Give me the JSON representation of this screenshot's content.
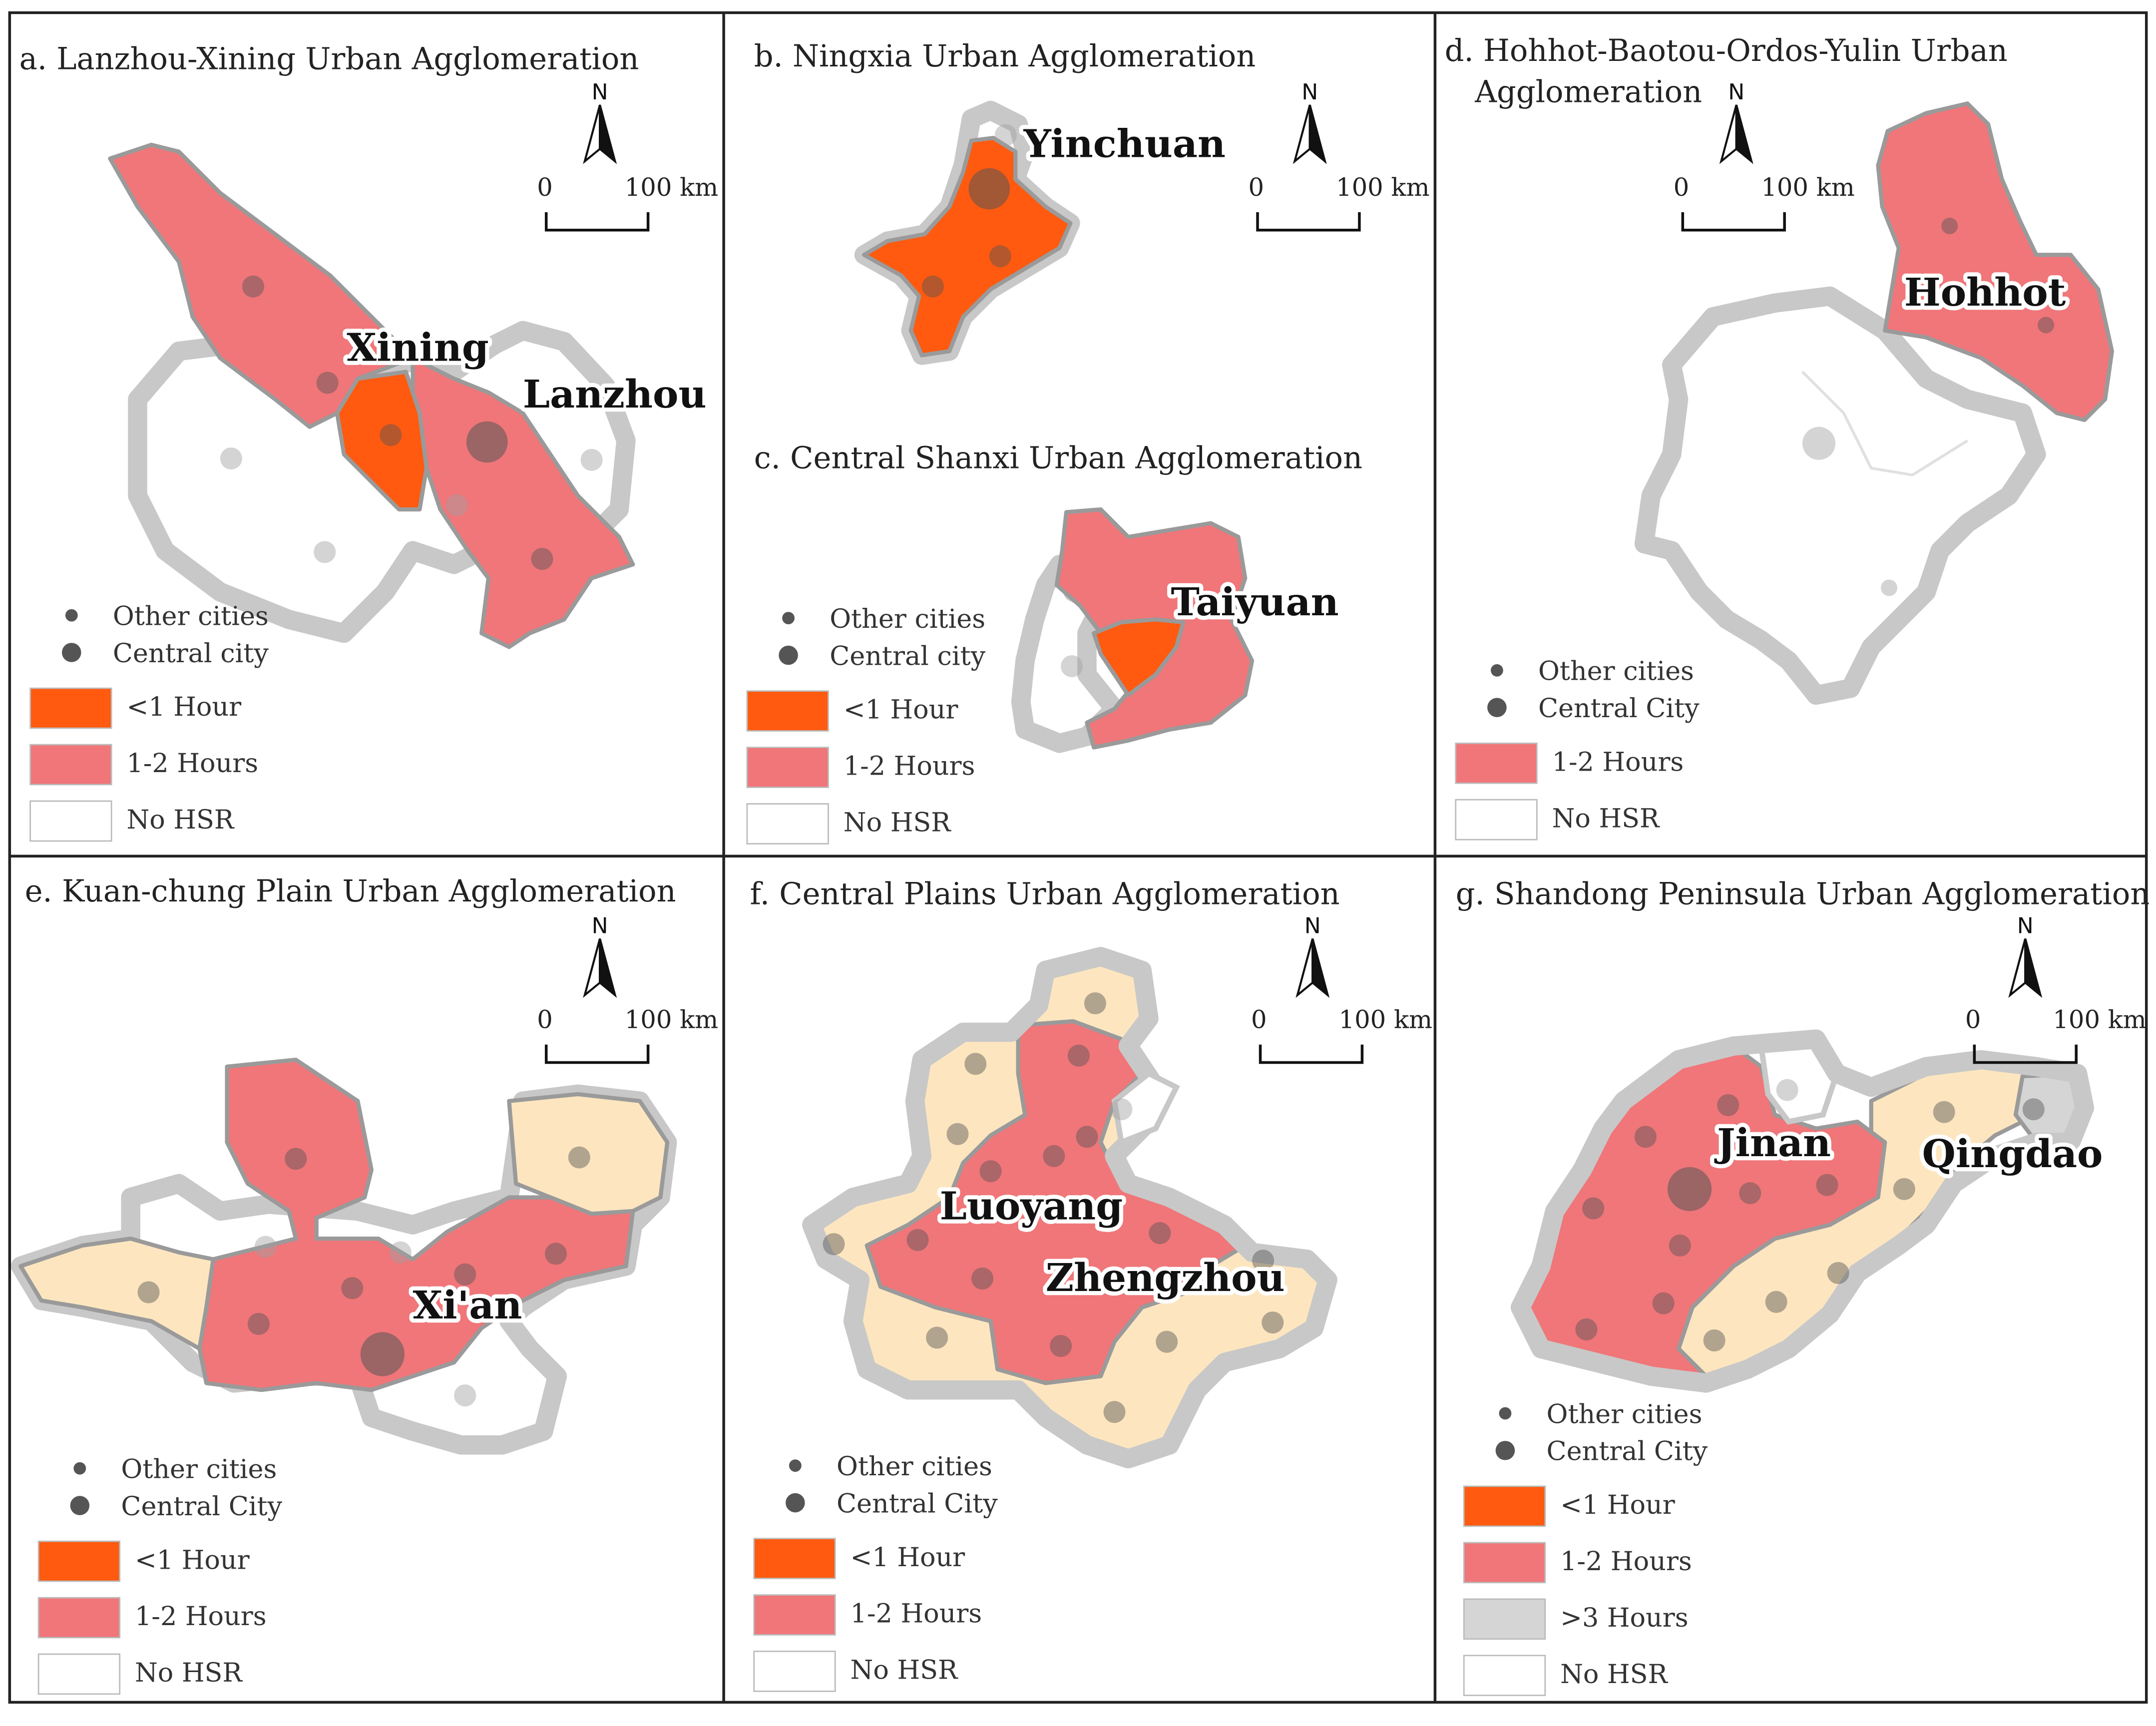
{
  "colors": {
    "lt1": "#ff5a0f",
    "h12": "#f07679",
    "h23": "#fde6bf",
    "gt3": "#d5d5d5",
    "nohsr": "#ffffff",
    "dot": "#555555"
  },
  "panels": [
    {
      "id": "a",
      "title": "a. Lanzhou-Xining Urban Agglomeration",
      "scale": {
        "zero": "0",
        "dist": "100 km"
      },
      "north": "N",
      "labels": [
        "Xining",
        "Lanzhou"
      ],
      "legend": [
        "Other cities",
        "Central city",
        "<1 Hour",
        "1-2 Hours",
        "No HSR"
      ]
    },
    {
      "id": "b",
      "title": "b. Ningxia Urban Agglomeration",
      "scale": {
        "zero": "0",
        "dist": "100 km"
      },
      "north": "N",
      "labels": [
        "Yinchuan"
      ]
    },
    {
      "id": "c",
      "title": "c. Central Shanxi Urban Agglomeration",
      "labels": [
        "Taiyuan"
      ],
      "legend": [
        "Other cities",
        "Central city",
        "<1 Hour",
        "1-2 Hours",
        "No HSR"
      ]
    },
    {
      "id": "d",
      "title_lines": [
        "d. Hohhot-Baotou-Ordos-Yulin Urban",
        "Agglomeration"
      ],
      "scale": {
        "zero": "0",
        "dist": "100 km"
      },
      "north": "N",
      "labels": [
        "Hohhot"
      ],
      "legend": [
        "Other cities",
        "Central City",
        "1-2 Hours",
        "No HSR"
      ]
    },
    {
      "id": "e",
      "title": "e. Kuan-chung Plain Urban Agglomeration",
      "scale": {
        "zero": "0",
        "dist": "100 km"
      },
      "north": "N",
      "labels": [
        "Xi'an"
      ],
      "legend": [
        "Other cities",
        "Central City",
        "<1 Hour",
        "1-2 Hours",
        "No HSR"
      ]
    },
    {
      "id": "f",
      "title": "f. Central Plains Urban Agglomeration",
      "scale": {
        "zero": "0",
        "dist": "100 km"
      },
      "north": "N",
      "labels": [
        "Luoyang",
        "Zhengzhou"
      ],
      "legend": [
        "Other cities",
        "Central City",
        "<1 Hour",
        "1-2 Hours",
        "No HSR"
      ]
    },
    {
      "id": "g",
      "title": "g. Shandong Peninsula Urban Agglomeration",
      "scale": {
        "zero": "0",
        "dist": "100 km"
      },
      "north": "N",
      "labels": [
        "Jinan",
        "Qingdao"
      ],
      "legend": [
        "Other cities",
        "Central City",
        "<1 Hour",
        "1-2 Hours",
        ">3 Hours",
        "No HSR"
      ]
    }
  ]
}
